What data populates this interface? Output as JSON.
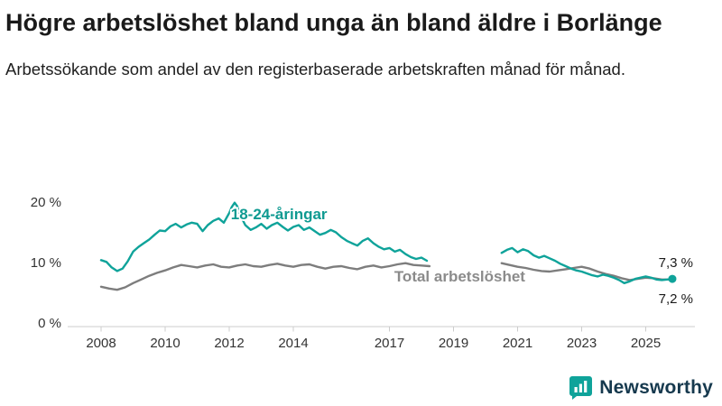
{
  "header": {
    "title": "Högre arbetslöshet bland unga än bland äldre i Borlänge",
    "subtitle": "Arbetssökande som andel av den registerbaserade arbetskraften månad för månad."
  },
  "chart_data": {
    "type": "line",
    "unit": "%",
    "title": "Högre arbetslöshet bland unga än bland äldre i Borlänge",
    "x_axis": {
      "ticks": [
        2008,
        2010,
        2012,
        2014,
        2017,
        2019,
        2021,
        2023,
        2025
      ],
      "min": 2007.6,
      "max": 2026.3
    },
    "y_axis": {
      "ticks": [
        0,
        10,
        20
      ],
      "labels": [
        "0 %",
        "10 %",
        "20 %"
      ],
      "min": 0,
      "max": 21
    },
    "legend_position": "inline-labels",
    "grid": false,
    "series": [
      {
        "name": "18-24-åringar",
        "color": "#0fa39a",
        "label_color": "#0e9a91",
        "label": {
          "x": 2012.05,
          "y": 17.2
        },
        "latest_value_label": "7,3 %",
        "segments": [
          [
            [
              2008.0,
              10.4
            ],
            [
              2008.17,
              10.1
            ],
            [
              2008.33,
              9.2
            ],
            [
              2008.5,
              8.6
            ],
            [
              2008.67,
              9.0
            ],
            [
              2008.83,
              10.2
            ],
            [
              2009.0,
              11.8
            ],
            [
              2009.17,
              12.6
            ],
            [
              2009.33,
              13.2
            ],
            [
              2009.5,
              13.8
            ],
            [
              2009.67,
              14.6
            ],
            [
              2009.83,
              15.3
            ],
            [
              2010.0,
              15.2
            ],
            [
              2010.17,
              16.0
            ],
            [
              2010.33,
              16.4
            ],
            [
              2010.5,
              15.8
            ],
            [
              2010.67,
              16.3
            ],
            [
              2010.83,
              16.6
            ],
            [
              2011.0,
              16.4
            ],
            [
              2011.17,
              15.2
            ],
            [
              2011.33,
              16.2
            ],
            [
              2011.5,
              16.9
            ],
            [
              2011.67,
              17.3
            ],
            [
              2011.83,
              16.6
            ],
            [
              2012.0,
              18.2
            ],
            [
              2012.08,
              19.2
            ],
            [
              2012.17,
              19.9
            ],
            [
              2012.25,
              19.3
            ],
            [
              2012.33,
              18.0
            ],
            [
              2012.5,
              16.2
            ],
            [
              2012.67,
              15.4
            ],
            [
              2012.83,
              15.8
            ],
            [
              2013.0,
              16.4
            ],
            [
              2013.17,
              15.6
            ],
            [
              2013.33,
              16.2
            ],
            [
              2013.5,
              16.6
            ],
            [
              2013.67,
              15.9
            ],
            [
              2013.83,
              15.3
            ],
            [
              2014.0,
              15.9
            ],
            [
              2014.17,
              16.2
            ],
            [
              2014.33,
              15.4
            ],
            [
              2014.5,
              15.8
            ],
            [
              2014.67,
              15.2
            ],
            [
              2014.83,
              14.6
            ],
            [
              2015.0,
              14.9
            ],
            [
              2015.17,
              15.4
            ],
            [
              2015.33,
              15.0
            ],
            [
              2015.5,
              14.2
            ],
            [
              2015.67,
              13.6
            ],
            [
              2015.83,
              13.2
            ],
            [
              2016.0,
              12.8
            ],
            [
              2016.17,
              13.6
            ],
            [
              2016.33,
              14.0
            ],
            [
              2016.5,
              13.2
            ],
            [
              2016.67,
              12.6
            ],
            [
              2016.83,
              12.2
            ],
            [
              2017.0,
              12.4
            ],
            [
              2017.17,
              11.8
            ],
            [
              2017.33,
              12.1
            ],
            [
              2017.5,
              11.4
            ],
            [
              2017.67,
              10.9
            ],
            [
              2017.83,
              10.6
            ],
            [
              2018.0,
              10.8
            ],
            [
              2018.17,
              10.3
            ]
          ],
          [
            [
              2020.5,
              11.6
            ],
            [
              2020.67,
              12.1
            ],
            [
              2020.83,
              12.4
            ],
            [
              2021.0,
              11.7
            ],
            [
              2021.17,
              12.2
            ],
            [
              2021.33,
              11.9
            ],
            [
              2021.5,
              11.2
            ],
            [
              2021.67,
              10.8
            ],
            [
              2021.83,
              11.1
            ],
            [
              2022.0,
              10.7
            ],
            [
              2022.17,
              10.3
            ],
            [
              2022.33,
              9.8
            ],
            [
              2022.5,
              9.4
            ],
            [
              2022.67,
              9.0
            ],
            [
              2022.83,
              8.7
            ],
            [
              2023.0,
              8.5
            ],
            [
              2023.17,
              8.2
            ],
            [
              2023.33,
              7.9
            ],
            [
              2023.5,
              7.7
            ],
            [
              2023.67,
              8.0
            ],
            [
              2023.83,
              7.8
            ],
            [
              2024.0,
              7.5
            ],
            [
              2024.17,
              7.1
            ],
            [
              2024.33,
              6.6
            ],
            [
              2024.5,
              6.9
            ],
            [
              2024.67,
              7.3
            ],
            [
              2024.83,
              7.5
            ],
            [
              2025.0,
              7.7
            ],
            [
              2025.17,
              7.5
            ],
            [
              2025.33,
              7.2
            ],
            [
              2025.5,
              7.1
            ],
            [
              2025.67,
              7.2
            ],
            [
              2025.83,
              7.3
            ]
          ]
        ]
      },
      {
        "name": "Total arbetslöshet",
        "color": "#7d7d7d",
        "label_color": "#8b8b8b",
        "label": {
          "x": 2017.15,
          "y": 6.85
        },
        "latest_value_label": "7,2 %",
        "segments": [
          [
            [
              2008.0,
              6.0
            ],
            [
              2008.25,
              5.7
            ],
            [
              2008.5,
              5.5
            ],
            [
              2008.75,
              5.9
            ],
            [
              2009.0,
              6.6
            ],
            [
              2009.25,
              7.2
            ],
            [
              2009.5,
              7.8
            ],
            [
              2009.75,
              8.3
            ],
            [
              2010.0,
              8.7
            ],
            [
              2010.25,
              9.2
            ],
            [
              2010.5,
              9.6
            ],
            [
              2010.75,
              9.4
            ],
            [
              2011.0,
              9.2
            ],
            [
              2011.25,
              9.5
            ],
            [
              2011.5,
              9.7
            ],
            [
              2011.75,
              9.3
            ],
            [
              2012.0,
              9.2
            ],
            [
              2012.25,
              9.5
            ],
            [
              2012.5,
              9.7
            ],
            [
              2012.75,
              9.4
            ],
            [
              2013.0,
              9.3
            ],
            [
              2013.25,
              9.6
            ],
            [
              2013.5,
              9.8
            ],
            [
              2013.75,
              9.5
            ],
            [
              2014.0,
              9.3
            ],
            [
              2014.25,
              9.6
            ],
            [
              2014.5,
              9.7
            ],
            [
              2014.75,
              9.3
            ],
            [
              2015.0,
              9.0
            ],
            [
              2015.25,
              9.3
            ],
            [
              2015.5,
              9.4
            ],
            [
              2015.75,
              9.1
            ],
            [
              2016.0,
              8.9
            ],
            [
              2016.25,
              9.3
            ],
            [
              2016.5,
              9.5
            ],
            [
              2016.75,
              9.2
            ],
            [
              2017.0,
              9.4
            ],
            [
              2017.25,
              9.7
            ],
            [
              2017.5,
              9.9
            ],
            [
              2017.75,
              9.6
            ],
            [
              2018.0,
              9.5
            ],
            [
              2018.25,
              9.4
            ]
          ],
          [
            [
              2020.5,
              9.9
            ],
            [
              2020.75,
              9.6
            ],
            [
              2021.0,
              9.3
            ],
            [
              2021.25,
              9.1
            ],
            [
              2021.5,
              8.8
            ],
            [
              2021.75,
              8.6
            ],
            [
              2022.0,
              8.5
            ],
            [
              2022.25,
              8.7
            ],
            [
              2022.5,
              8.9
            ],
            [
              2022.75,
              9.1
            ],
            [
              2023.0,
              9.3
            ],
            [
              2023.25,
              9.0
            ],
            [
              2023.5,
              8.5
            ],
            [
              2023.75,
              8.1
            ],
            [
              2024.0,
              7.8
            ],
            [
              2024.25,
              7.4
            ],
            [
              2024.5,
              7.1
            ],
            [
              2024.75,
              7.3
            ],
            [
              2025.0,
              7.5
            ],
            [
              2025.25,
              7.4
            ],
            [
              2025.5,
              7.2
            ],
            [
              2025.83,
              7.2
            ]
          ]
        ]
      }
    ],
    "end_annotations": [
      {
        "text": "7,3 %",
        "series": "18-24-åringar",
        "value": 7.3,
        "dy": -13
      },
      {
        "text": "7,2 %",
        "series": "Total arbetslöshet",
        "value": 7.2,
        "dy": 26
      }
    ],
    "end_dot": {
      "x": 2025.83,
      "y": 7.3
    }
  },
  "footer": {
    "brand": "Newsworthy"
  },
  "colors": {
    "accent_teal": "#0fa39a",
    "line_gray": "#7d7d7d",
    "axis_line": "#cccccc",
    "axis_text": "#333333",
    "brand_ink": "#16394e"
  }
}
